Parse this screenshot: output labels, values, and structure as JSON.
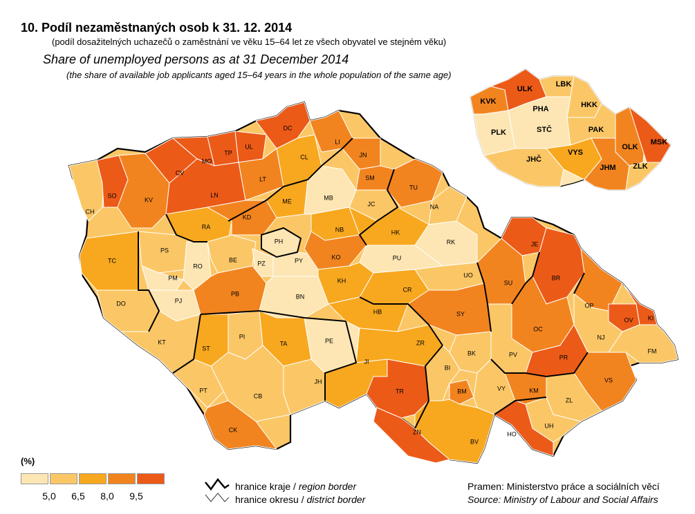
{
  "title": "10. Podíl nezaměstnaných osob k 31. 12. 2014",
  "subtitle": "(podíl dosažitelných uchazečů o zaměstnání ve věku 15–64 let ze všech obyvatel ve stejném věku)",
  "title_en": "Share of unemployed persons as at 31 December 2014",
  "subtitle_en": "(the share of available job applicants aged 15–64 years in the whole population of the same age)",
  "legend": {
    "unit": "(%)",
    "colors": [
      "#fde6b4",
      "#fbc766",
      "#f8a81f",
      "#f2841f",
      "#ec5a18"
    ],
    "ticks": [
      "5,0",
      "6,5",
      "8,0",
      "9,5"
    ]
  },
  "borders": {
    "region_prefix": "hranice kraje / ",
    "region_en": "region border",
    "district_prefix": "hranice okresu / ",
    "district_en": "district border"
  },
  "source": {
    "cz": "Pramen: Ministerstvo práce a sociálních věcí",
    "en": "Source: Ministry of Labour and Social Affairs"
  },
  "districts": [
    {
      "code": "CH",
      "cls": 1
    },
    {
      "code": "SO",
      "cls": 4
    },
    {
      "code": "KV",
      "cls": 3
    },
    {
      "code": "CV",
      "cls": 4
    },
    {
      "code": "MO",
      "cls": 4
    },
    {
      "code": "TP",
      "cls": 4
    },
    {
      "code": "UL",
      "cls": 4
    },
    {
      "code": "DC",
      "cls": 4
    },
    {
      "code": "LT",
      "cls": 3
    },
    {
      "code": "LN",
      "cls": 4
    },
    {
      "code": "CL",
      "cls": 2
    },
    {
      "code": "LI",
      "cls": 3
    },
    {
      "code": "JN",
      "cls": 3
    },
    {
      "code": "SM",
      "cls": 3
    },
    {
      "code": "ME",
      "cls": 2
    },
    {
      "code": "MB",
      "cls": 0
    },
    {
      "code": "JC",
      "cls": 1
    },
    {
      "code": "TU",
      "cls": 3
    },
    {
      "code": "NA",
      "cls": 1
    },
    {
      "code": "RA",
      "cls": 2
    },
    {
      "code": "KD",
      "cls": 3
    },
    {
      "code": "PH",
      "cls": 0
    },
    {
      "code": "NB",
      "cls": 2
    },
    {
      "code": "HK",
      "cls": 2
    },
    {
      "code": "RK",
      "cls": 0
    },
    {
      "code": "TC",
      "cls": 2
    },
    {
      "code": "PS",
      "cls": 1
    },
    {
      "code": "RO",
      "cls": 0
    },
    {
      "code": "BE",
      "cls": 1
    },
    {
      "code": "PZ",
      "cls": 0
    },
    {
      "code": "PY",
      "cls": 0
    },
    {
      "code": "KO",
      "cls": 3
    },
    {
      "code": "PU",
      "cls": 0
    },
    {
      "code": "PM",
      "cls": 0
    },
    {
      "code": "PJ",
      "cls": 0
    },
    {
      "code": "DO",
      "cls": 1
    },
    {
      "code": "PB",
      "cls": 3
    },
    {
      "code": "BN",
      "cls": 0
    },
    {
      "code": "KH",
      "cls": 2
    },
    {
      "code": "CR",
      "cls": 2
    },
    {
      "code": "UO",
      "cls": 1
    },
    {
      "code": "SU",
      "cls": 3
    },
    {
      "code": "JE",
      "cls": 4
    },
    {
      "code": "BR",
      "cls": 4
    },
    {
      "code": "OP",
      "cls": 3
    },
    {
      "code": "OV",
      "cls": 4
    },
    {
      "code": "KI",
      "cls": 4
    },
    {
      "code": "KT",
      "cls": 1
    },
    {
      "code": "ST",
      "cls": 2
    },
    {
      "code": "PI",
      "cls": 1
    },
    {
      "code": "TA",
      "cls": 2
    },
    {
      "code": "HB",
      "cls": 2
    },
    {
      "code": "PE",
      "cls": 0
    },
    {
      "code": "SY",
      "cls": 3
    },
    {
      "code": "ZR",
      "cls": 2
    },
    {
      "code": "OC",
      "cls": 3
    },
    {
      "code": "NJ",
      "cls": 1
    },
    {
      "code": "FM",
      "cls": 1
    },
    {
      "code": "PV",
      "cls": 1
    },
    {
      "code": "PR",
      "cls": 4
    },
    {
      "code": "JI",
      "cls": 2
    },
    {
      "code": "BK",
      "cls": 1
    },
    {
      "code": "BI",
      "cls": 1
    },
    {
      "code": "JH",
      "cls": 1
    },
    {
      "code": "PT",
      "cls": 1
    },
    {
      "code": "CB",
      "cls": 1
    },
    {
      "code": "TR",
      "cls": 4
    },
    {
      "code": "BM",
      "cls": 3
    },
    {
      "code": "VY",
      "cls": 1
    },
    {
      "code": "KM",
      "cls": 3
    },
    {
      "code": "VS",
      "cls": 3
    },
    {
      "code": "ZL",
      "cls": 1
    },
    {
      "code": "CK",
      "cls": 3
    },
    {
      "code": "ZN",
      "cls": 4
    },
    {
      "code": "BV",
      "cls": 2
    },
    {
      "code": "HO",
      "cls": 4
    },
    {
      "code": "UH",
      "cls": 1
    }
  ],
  "regions": [
    {
      "code": "KVK",
      "cls": 3
    },
    {
      "code": "ULK",
      "cls": 4
    },
    {
      "code": "LBK",
      "cls": 1
    },
    {
      "code": "PHA",
      "cls": 0
    },
    {
      "code": "HKK",
      "cls": 1
    },
    {
      "code": "PLK",
      "cls": 0
    },
    {
      "code": "STČ",
      "cls": 0
    },
    {
      "code": "PAK",
      "cls": 1
    },
    {
      "code": "VYS",
      "cls": 2
    },
    {
      "code": "OLK",
      "cls": 3
    },
    {
      "code": "MSK",
      "cls": 4
    },
    {
      "code": "JHČ",
      "cls": 1
    },
    {
      "code": "JHM",
      "cls": 3
    },
    {
      "code": "ZLK",
      "cls": 1
    }
  ]
}
